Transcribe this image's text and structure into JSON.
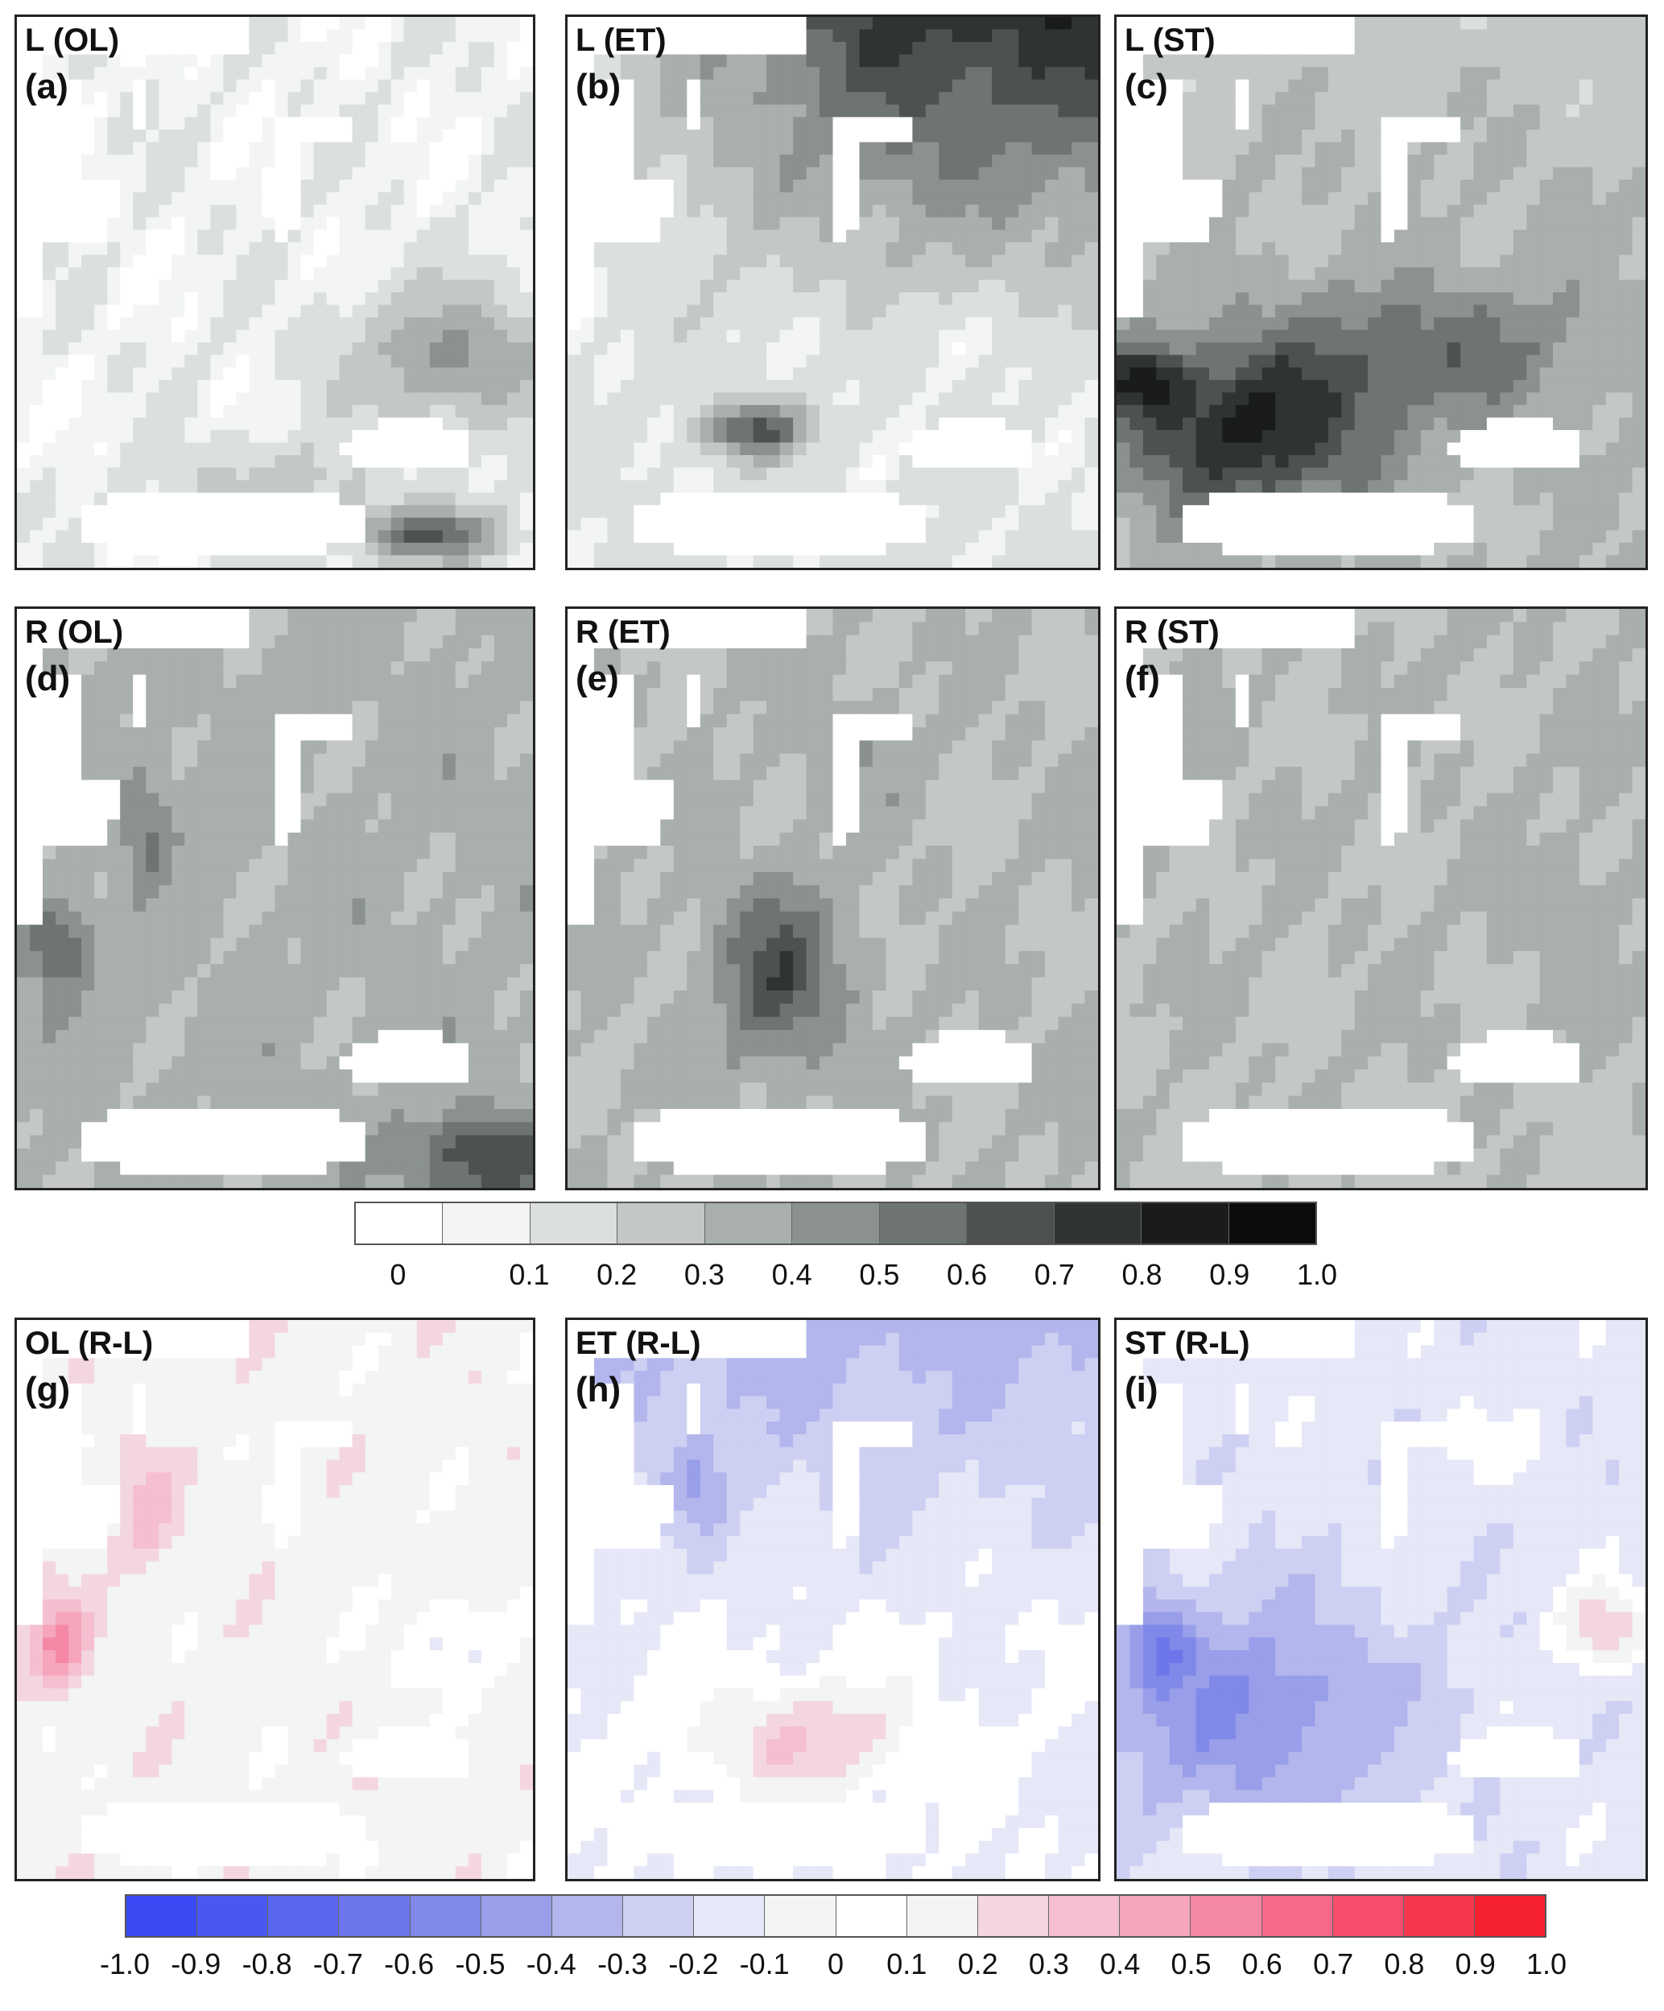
{
  "panels": [
    {
      "title": "L (OL)",
      "letter": "(a)",
      "scheme": "gray",
      "field": "a"
    },
    {
      "title": "L (ET)",
      "letter": "(b)",
      "scheme": "gray",
      "field": "b"
    },
    {
      "title": "L (ST)",
      "letter": "(c)",
      "scheme": "gray",
      "field": "c"
    },
    {
      "title": "R (OL)",
      "letter": "(d)",
      "scheme": "gray",
      "field": "d"
    },
    {
      "title": "R (ET)",
      "letter": "(e)",
      "scheme": "gray",
      "field": "e"
    },
    {
      "title": "R (ST)",
      "letter": "(f)",
      "scheme": "gray",
      "field": "f"
    },
    {
      "title": "OL (R-L)",
      "letter": "(g)",
      "scheme": "div",
      "field": "g"
    },
    {
      "title": "ET (R-L)",
      "letter": "(h)",
      "scheme": "div",
      "field": "h"
    },
    {
      "title": "ST (R-L)",
      "letter": "(i)",
      "scheme": "div",
      "field": "i"
    }
  ],
  "colorbar_gray": {
    "colors": [
      "#ffffff",
      "#f3f5f5",
      "#dcdfdf",
      "#c3c7c7",
      "#a9aeae",
      "#8b9191",
      "#6e7373",
      "#4d5151",
      "#303333",
      "#1a1c1c",
      "#0b0c0c"
    ],
    "ticks": [
      "0",
      "0.1",
      "0.2",
      "0.3",
      "0.4",
      "0.5",
      "0.6",
      "0.7",
      "0.8",
      "0.9",
      "1.0"
    ]
  },
  "colorbar_div": {
    "colors": [
      "#3a4af5",
      "#4a58f1",
      "#5a66ee",
      "#6c76ea",
      "#8088e8",
      "#989ee9",
      "#b2b6ec",
      "#cdd0f2",
      "#e6e7f7",
      "#f3f4f4",
      "#ffffff",
      "#f3f4f4",
      "#f4d6e0",
      "#f5bfd0",
      "#f6a5bd",
      "#f588a4",
      "#f56a88",
      "#f54d6b",
      "#f5374e",
      "#f52133"
    ],
    "ticks": [
      "-1.0",
      "-0.9",
      "-0.8",
      "-0.7",
      "-0.6",
      "-0.5",
      "-0.4",
      "-0.3",
      "-0.2",
      "-0.1",
      "0",
      "0.1",
      "0.2",
      "0.3",
      "0.4",
      "0.5",
      "0.6",
      "0.7",
      "0.8",
      "0.9",
      "1.0"
    ]
  }
}
